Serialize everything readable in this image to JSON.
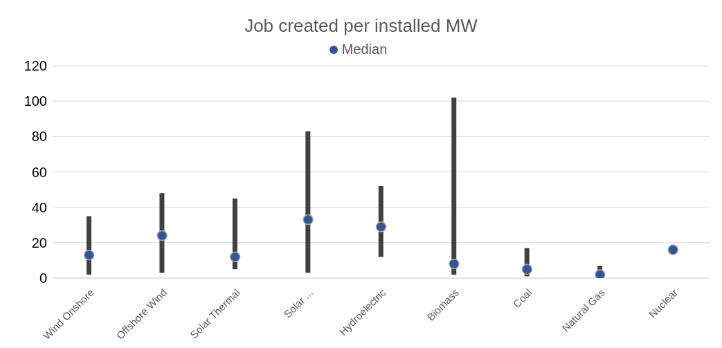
{
  "chart_data": {
    "type": "bar",
    "title": "Job created per installed MW",
    "categories": [
      "Wind Onshore",
      "Offshore Wind",
      "Solar Thermal",
      "Solar ...",
      "Hydroelectric",
      "Biomass",
      "Coal",
      "Natural Gas",
      "Nuclear"
    ],
    "series": [
      {
        "color": "#404040",
        "base": [
          2,
          3,
          5,
          3,
          12,
          2,
          1,
          0,
          null
        ],
        "values": [
          33,
          45,
          40,
          80,
          40,
          100,
          16,
          7,
          null
        ]
      },
      {
        "type": "scatter",
        "name": "Median",
        "color": "#2f5597",
        "x": [
          "Wind Onshore",
          "Offshore Wind",
          "Solar Thermal",
          "Solar ...",
          "Hydroelectric",
          "Biomass",
          "Coal",
          "Natural Gas",
          "Nuclear"
        ],
        "values": [
          13,
          24,
          12,
          33,
          29,
          8,
          5,
          2,
          16
        ]
      }
    ],
    "ylim": [
      0,
      120
    ],
    "yticks": [
      0,
      20,
      40,
      60,
      80,
      100,
      120
    ],
    "grid": "y",
    "legend": "top",
    "marker": "circle"
  }
}
